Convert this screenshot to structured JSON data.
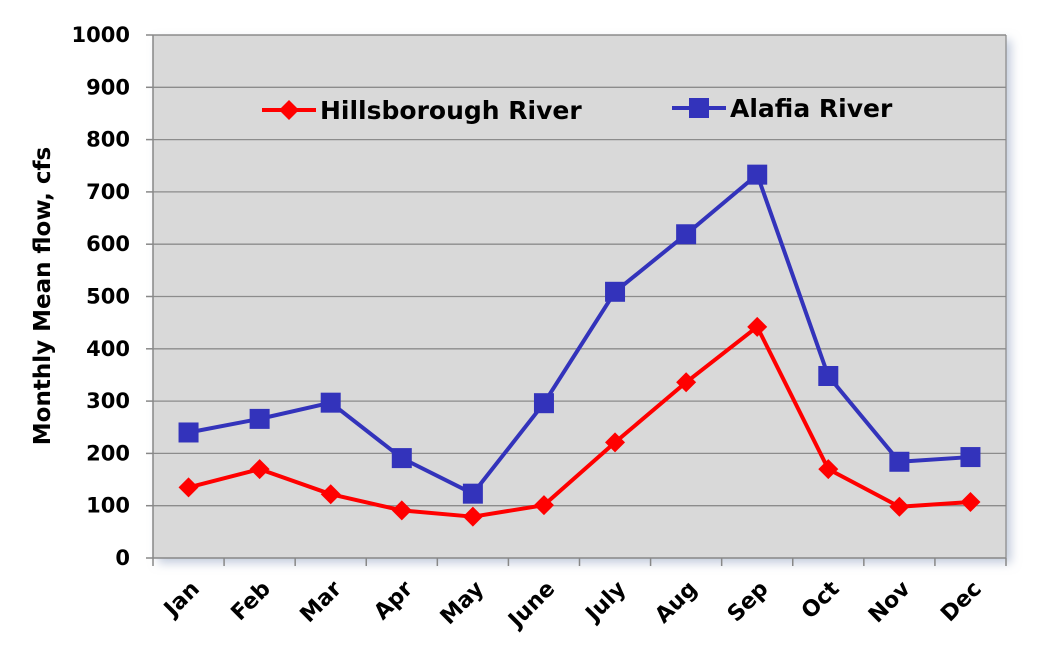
{
  "chart_data": {
    "type": "line",
    "title": "",
    "xlabel": "",
    "ylabel": "Monthly Mean flow, cfs",
    "ylim": [
      0,
      1000
    ],
    "yticks": [
      0,
      100,
      200,
      300,
      400,
      500,
      600,
      700,
      800,
      900,
      1000
    ],
    "grid": true,
    "legend_position": "top",
    "categories": [
      "Jan",
      "Feb",
      "Mar",
      "Apr",
      "May",
      "June",
      "July",
      "Aug",
      "Sep",
      "Oct",
      "Nov",
      "Dec"
    ],
    "series": [
      {
        "name": "Hillsborough River",
        "color": "#ff0000",
        "marker": "diamond",
        "values": [
          135,
          170,
          122,
          91,
          79,
          101,
          221,
          336,
          442,
          170,
          98,
          107
        ]
      },
      {
        "name": "Alafia River",
        "color": "#3333bb",
        "marker": "square",
        "values": [
          240,
          266,
          297,
          191,
          123,
          296,
          509,
          619,
          733,
          348,
          184,
          193
        ]
      }
    ],
    "colors": {
      "plot_background": "#d9d9d9",
      "gridline": "#8c8c8c"
    }
  }
}
